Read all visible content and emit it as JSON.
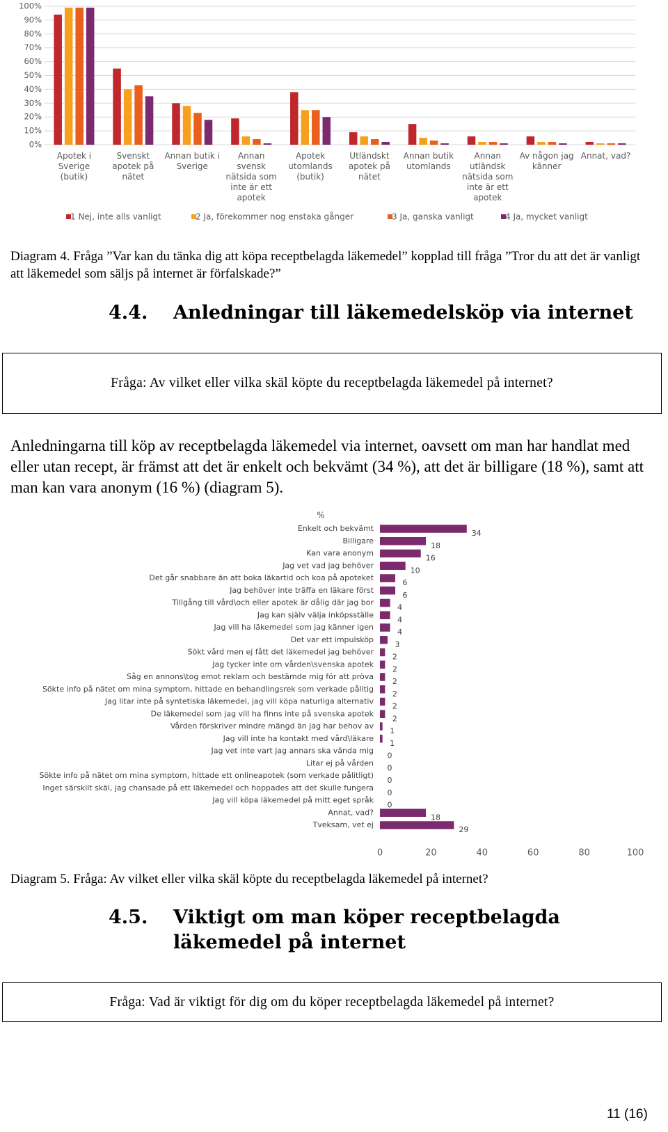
{
  "chart_data": [
    {
      "type": "grouped-bar",
      "categories": [
        "Apotek i Sverige (butik)",
        "Svenskt apotek på nätet",
        "Annan butik i Sverige",
        "Annan svensk nätsida som inte är ett apotek",
        "Apotek utomlands (butik)",
        "Utländskt apotek på nätet",
        "Annan butik utomlands",
        "Annan utländsk nätsida som inte är ett apotek",
        "Av någon jag känner",
        "Annat, vad?"
      ],
      "series": [
        {
          "name": "1 Nej, inte alls vanligt",
          "color": "#c0272d",
          "values": [
            94,
            55,
            30,
            19,
            38,
            9,
            15,
            6,
            6,
            2
          ]
        },
        {
          "name": "2 Ja, förekommer nog enstaka gånger",
          "color": "#f7a01d",
          "values": [
            99,
            40,
            28,
            6,
            25,
            6,
            5,
            2,
            2,
            1
          ]
        },
        {
          "name": "3 Ja, ganska vanligt",
          "color": "#e8601c",
          "values": [
            99,
            43,
            23,
            4,
            25,
            4,
            3,
            2,
            2,
            1
          ]
        },
        {
          "name": "4 Ja, mycket vanligt",
          "color": "#7b2a6e",
          "values": [
            99,
            35,
            18,
            1,
            20,
            2,
            1,
            1,
            1,
            1
          ]
        }
      ],
      "ylim": [
        0,
        100
      ],
      "yticks": [
        {
          "value": 0,
          "label": "0%"
        },
        {
          "value": 10,
          "label": "10%"
        },
        {
          "value": 20,
          "label": "20%"
        },
        {
          "value": 30,
          "label": "30%"
        },
        {
          "value": 40,
          "label": "40%"
        },
        {
          "value": 50,
          "label": "50%"
        },
        {
          "value": 60,
          "label": "60%"
        },
        {
          "value": 70,
          "label": "70%"
        },
        {
          "value": 80,
          "label": "80%"
        },
        {
          "value": 90,
          "label": "90%"
        },
        {
          "value": 100,
          "label": "100%"
        }
      ],
      "grid": true,
      "legend": "bottom"
    },
    {
      "type": "hbar",
      "y_label": "%",
      "categories": [
        "Enkelt och bekvämt",
        "Billigare",
        "Kan vara anonym",
        "Jag vet vad jag behöver",
        "Det går snabbare än att boka läkartid och koa på apoteket",
        "Jag behöver inte träffa en läkare först",
        "Tillgång till vård\\och eller apotek är dålig där jag bor",
        "Jag kan själv välja inköpsställe",
        "Jag vill ha läkemedel som jag känner igen",
        "Det var ett impulsköp",
        "Sökt vård men ej fått det läkemedel jag behöver",
        "Jag tycker inte om vården\\svenska apotek",
        "Såg en annons\\tog emot reklam och bestämde mig för att pröva",
        "Sökte info på nätet om mina symptom, hittade en behandlingsrek som verkade pålitig",
        "Jag litar inte på syntetiska läkemedel, jag vill köpa naturliga alternativ",
        "De läkemedel som jag vill ha finns inte på svenska apotek",
        "Vården förskriver mindre mängd än jag har behov av",
        "Jag vill inte ha kontakt med vård\\läkare",
        "Jag vet inte vart jag annars ska vända mig",
        "Litar ej på vården",
        "Sökte info på nätet om mina symptom, hittade ett onlineapotek (som verkade pålitligt)",
        "Inget särskilt skäl, jag chansade på ett läkemedel och hoppades att det skulle fungera",
        "Jag vill köpa läkemedel på mitt eget språk",
        "Annat, vad?",
        "Tveksam, vet ej"
      ],
      "values": [
        34,
        18,
        16,
        10,
        6,
        6,
        4,
        4,
        4,
        3,
        2,
        2,
        2,
        2,
        2,
        2,
        1,
        1,
        0,
        0,
        0,
        0,
        0,
        18,
        29
      ],
      "color": "#7b2a6e",
      "xlim": [
        0,
        100
      ],
      "xticks": [
        0,
        20,
        40,
        60,
        80,
        100
      ],
      "grid": false
    }
  ],
  "caption_4": "Diagram 4. Fråga ”Var kan du tänka dig att köpa receptbelagda läkemedel” kopplad till fråga ”Tror du att det är vanligt att läkemedel som säljs på internet är förfalskade?”",
  "section_44": {
    "number": "4.4.",
    "title": "Anledningar till läkemedelsköp via internet",
    "question": "Fråga: Av vilket eller vilka skäl köpte du receptbelagda läkemedel på internet?"
  },
  "paragraph": "Anledningarna till köp av receptbelagda läkemedel via internet, oavsett om man har handlat med eller utan recept, är främst att det är enkelt och bekvämt (34 %), att det är billigare (18 %), samt att man kan vara anonym (16 %) (diagram 5).",
  "caption_5": "Diagram 5. Fråga: Av vilket eller vilka skäl köpte du receptbelagda läkemedel på internet?",
  "section_45": {
    "number": "4.5.",
    "title": "Viktigt om man köper receptbelagda läkemedel på internet",
    "question": "Fråga: Vad är viktigt för dig om du köper receptbelagda läkemedel på internet?"
  },
  "page_number": "11 (16)"
}
